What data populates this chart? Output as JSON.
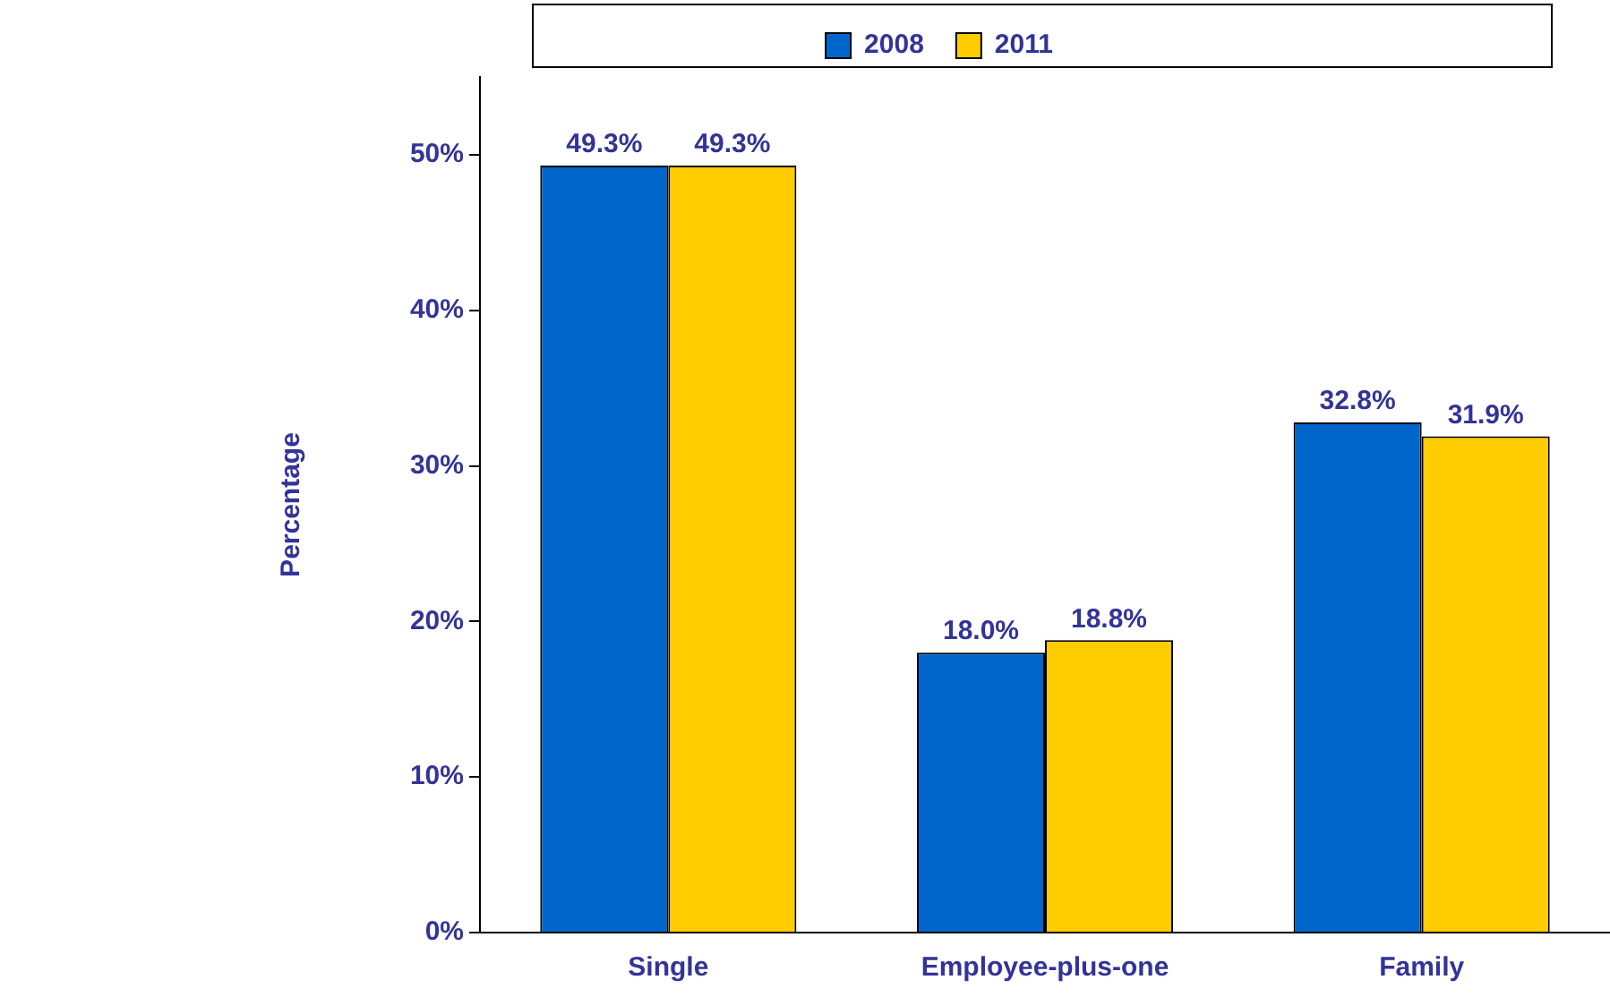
{
  "chart_data": {
    "type": "bar",
    "ylabel": "Percentage",
    "categories": [
      "Single",
      "Employee-plus-one",
      "Family"
    ],
    "series": [
      {
        "name": "2008",
        "color": "#0066cc",
        "values": [
          49.3,
          18.0,
          32.8
        ],
        "value_labels": [
          "49.3%",
          "18.0%",
          "32.8%"
        ]
      },
      {
        "name": "2011",
        "color": "#ffcc00",
        "values": [
          49.3,
          18.8,
          31.9
        ],
        "value_labels": [
          "49.3%",
          "18.8%",
          "31.9%"
        ]
      }
    ],
    "ylim": [
      0,
      55
    ],
    "yticks": [
      {
        "value": 0,
        "label": "0%"
      },
      {
        "value": 10,
        "label": "10%"
      },
      {
        "value": 20,
        "label": "20%"
      },
      {
        "value": 30,
        "label": "30%"
      },
      {
        "value": 40,
        "label": "40%"
      },
      {
        "value": 50,
        "label": "50%"
      }
    ],
    "grid": false,
    "legend": "top"
  }
}
